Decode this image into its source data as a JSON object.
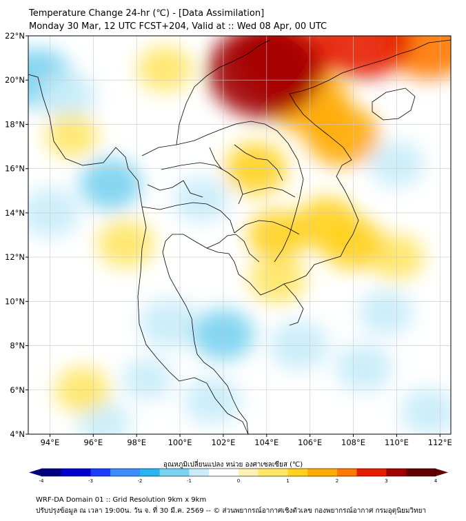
{
  "header": {
    "title": "Temperature Change 24-hr (℃) - [Data Assimilation]",
    "subtitle": "Monday 30 Mar, 12 UTC FCST+204, Valid at :: Wed 08 Apr, 00 UTC"
  },
  "map": {
    "lon_range": [
      93,
      112.5
    ],
    "lat_range": [
      4,
      22
    ],
    "lon_ticks": [
      "94°E",
      "96°E",
      "98°E",
      "100°E",
      "102°E",
      "104°E",
      "106°E",
      "108°E",
      "110°E",
      "112°E"
    ],
    "lat_ticks": [
      "22°N",
      "20°N",
      "18°N",
      "16°N",
      "14°N",
      "12°N",
      "10°N",
      "8°N",
      "6°N",
      "4°N"
    ],
    "background_color": "#ffffff",
    "gridline_color": "#c8c8c8",
    "coastline_color": "#000000",
    "warm_anomalies": [
      {
        "lon": 103.9,
        "lat": 20.4,
        "value": 3.3
      },
      {
        "lon": 104.7,
        "lat": 21.0,
        "value": 2.7
      },
      {
        "lon": 108.5,
        "lat": 21.9,
        "value": 2.6
      },
      {
        "lon": 111.5,
        "lat": 21.8,
        "value": 2.4
      },
      {
        "lon": 106.0,
        "lat": 19.0,
        "value": 1.8
      },
      {
        "lon": 107.5,
        "lat": 17.5,
        "value": 1.6
      },
      {
        "lon": 103.5,
        "lat": 16.0,
        "value": 1.1
      },
      {
        "lon": 104.5,
        "lat": 13.0,
        "value": 1.0
      },
      {
        "lon": 106.8,
        "lat": 13.5,
        "value": 1.2
      },
      {
        "lon": 108.0,
        "lat": 12.6,
        "value": 1.1
      },
      {
        "lon": 99.3,
        "lat": 20.5,
        "value": 0.8
      },
      {
        "lon": 97.5,
        "lat": 12.6,
        "value": 0.9
      },
      {
        "lon": 110.0,
        "lat": 12.0,
        "value": 0.8
      },
      {
        "lon": 95.0,
        "lat": 17.5,
        "value": 0.7
      },
      {
        "lon": 95.5,
        "lat": 6.0,
        "value": 0.8
      },
      {
        "lon": 104.5,
        "lat": 11.0,
        "value": 0.9
      }
    ],
    "cool_anomalies": [
      {
        "lon": 93.4,
        "lat": 20.1,
        "value": -1.5
      },
      {
        "lon": 94.8,
        "lat": 19.3,
        "value": -0.9
      },
      {
        "lon": 96.8,
        "lat": 15.3,
        "value": -1.1
      },
      {
        "lon": 94.0,
        "lat": 14.0,
        "value": -1.0
      },
      {
        "lon": 101.0,
        "lat": 14.6,
        "value": -0.8
      },
      {
        "lon": 99.5,
        "lat": 9.0,
        "value": -1.0
      },
      {
        "lon": 102.0,
        "lat": 8.5,
        "value": -1.1
      },
      {
        "lon": 105.5,
        "lat": 8.0,
        "value": -1.0
      },
      {
        "lon": 108.5,
        "lat": 7.0,
        "value": -0.9
      },
      {
        "lon": 110.0,
        "lat": 16.2,
        "value": -0.8
      },
      {
        "lon": 109.5,
        "lat": 9.5,
        "value": -0.8
      },
      {
        "lon": 111.5,
        "lat": 5.0,
        "value": -0.9
      },
      {
        "lon": 96.5,
        "lat": 4.5,
        "value": -0.7
      },
      {
        "lon": 101.5,
        "lat": 5.5,
        "value": -0.9
      },
      {
        "lon": 98.5,
        "lat": 6.5,
        "value": -0.6
      }
    ]
  },
  "colorbar": {
    "label": "อุณหภูมิเปลี่ยนแปลง หน่วย องศาเซลเซียส (℃)",
    "ticks": [
      "-4",
      "-3",
      "-2",
      "-1",
      "0",
      "1",
      "2",
      "3",
      "4"
    ],
    "range": [
      -4,
      4
    ],
    "colors": [
      "#000080",
      "#0000cd",
      "#1e3cff",
      "#3c8cff",
      "#28b4f0",
      "#78d2f0",
      "#c8ecfa",
      "#ffffff",
      "#fff0b4",
      "#ffe664",
      "#ffd21e",
      "#ffaa00",
      "#ff7800",
      "#e61e00",
      "#a00000",
      "#640000"
    ]
  },
  "footer": {
    "line1": "WRF-DA Domain 01 :: Grid Resolution 9km x 9km",
    "line2": "ปรับปรุงข้อมูล ณ เวลา 19:00น. วัน จ. ที่ 30 มี.ค. 2569 -- © ส่วนพยากรณ์อากาศเชิงตัวเลข กองพยากรณ์อากาศ กรมอุตุนิยมวิทยา"
  }
}
